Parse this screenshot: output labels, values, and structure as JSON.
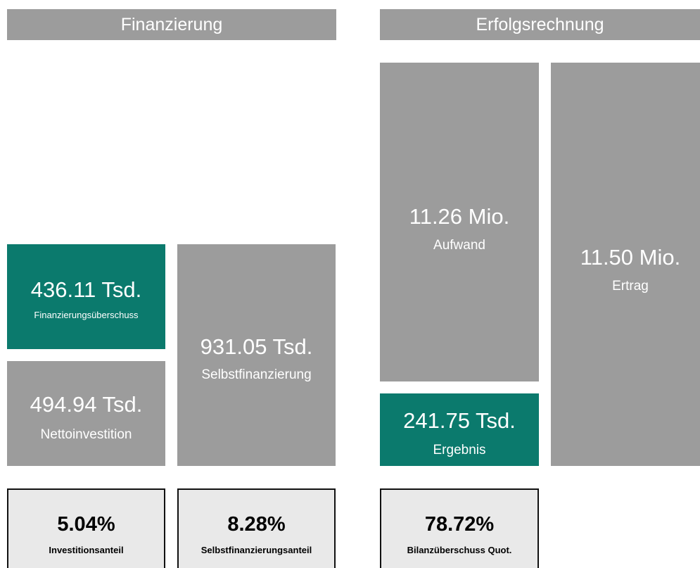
{
  "sections": [
    {
      "title": "Finanzierung",
      "tiles": [
        {
          "value": "436.11 Tsd.",
          "label": "Finanzierungsüberschuss"
        },
        {
          "value": "494.94 Tsd.",
          "label": "Nettoinvestition"
        },
        {
          "value": "931.05 Tsd.",
          "label": "Selbstfinanzierung"
        }
      ],
      "kpis": [
        {
          "value": "5.04%",
          "label": "Investitionsanteil"
        },
        {
          "value": "8.28%",
          "label": "Selbstfinanzierungsanteil"
        }
      ]
    },
    {
      "title": "Erfolgsrechnung",
      "tiles": [
        {
          "value": "11.26 Mio.",
          "label": "Aufwand"
        },
        {
          "value": "241.75 Tsd.",
          "label": "Ergebnis"
        },
        {
          "value": "11.50 Mio.",
          "label": "Ertrag"
        }
      ],
      "kpis": [
        {
          "value": "78.72%",
          "label": "Bilanzüberschuss Quot."
        }
      ]
    }
  ]
}
